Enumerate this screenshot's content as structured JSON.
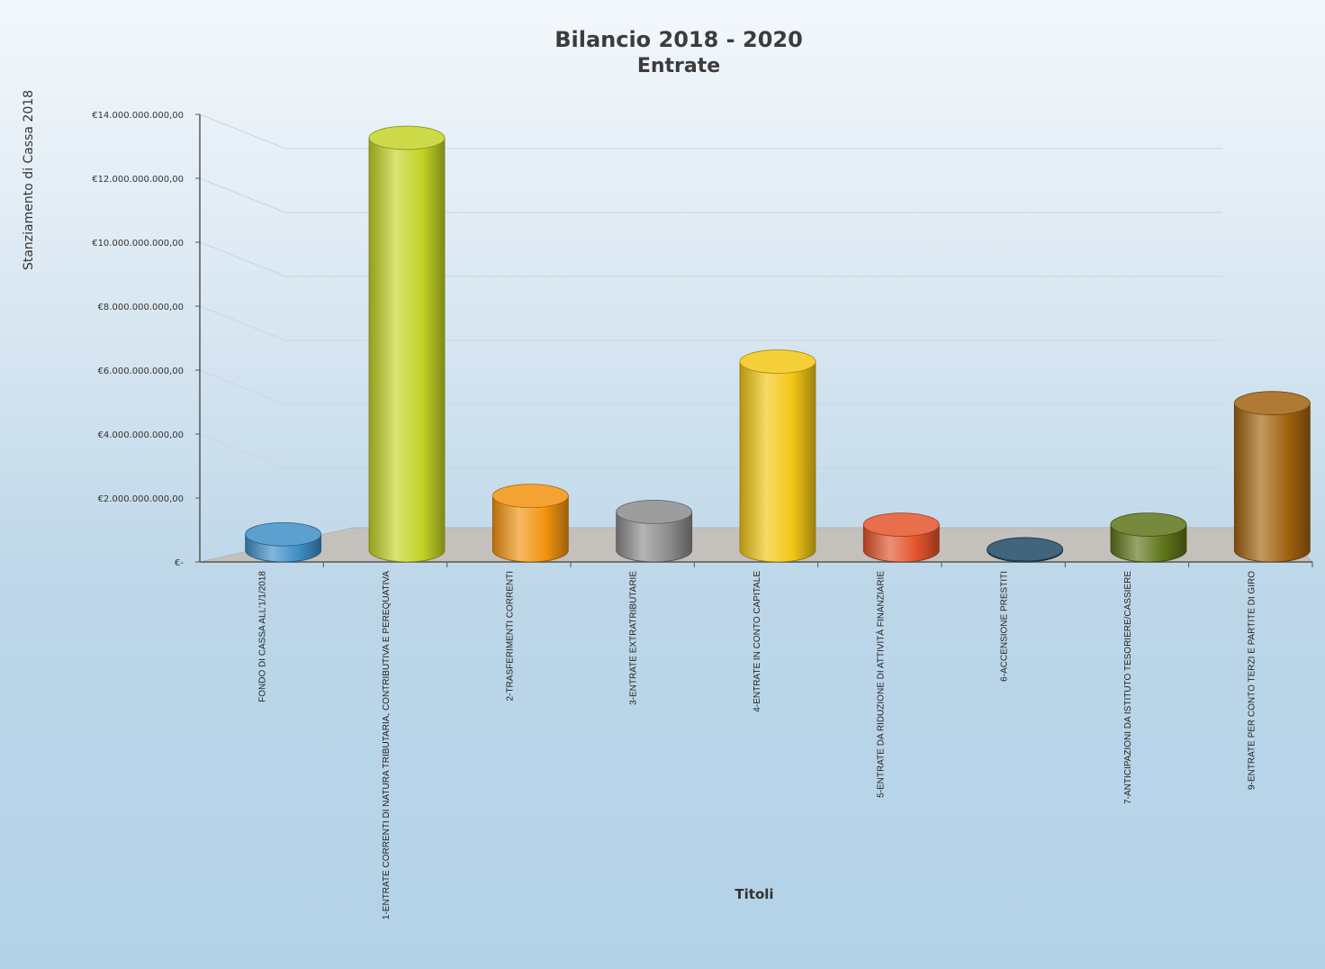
{
  "chart_data": {
    "type": "bar",
    "title": "Bilancio 2018 - 2020",
    "subtitle": "Entrate",
    "xlabel": "Titoli",
    "ylabel": "Stanziamento di Cassa 2018",
    "ylim": [
      0,
      14000000000
    ],
    "yticks": [
      0,
      2000000000,
      4000000000,
      6000000000,
      8000000000,
      10000000000,
      12000000000,
      14000000000
    ],
    "ytick_labels": [
      "€-",
      "€2.000.000.000,00",
      "€4.000.000.000,00",
      "€6.000.000.000,00",
      "€8.000.000.000,00",
      "€10.000.000.000,00",
      "€12.000.000.000,00",
      "€14.000.000.000,00"
    ],
    "grid": true,
    "style": "3d-cylinder",
    "categories": [
      "FONDO DI CASSA ALL'1/1/2018",
      "1-ENTRATE CORRENTI DI NATURA TRIBUTARIA, CONTRIBUTIVA E PEREQUATIVA",
      "2-TRASFERIMENTI CORRENTI",
      "3-ENTRATE EXTRATRIBUTARIE",
      "4-ENTRATE IN CONTO CAPITALE",
      "5-ENTRATE DA RIDUZIONE DI ATTIVITÀ FINANZIARIE",
      "6-ACCENSIONE PRESTITI",
      "7-ANTICIPAZIONI DA ISTITUTO TESORIERE/CASSIERE",
      "9-ENTRATE PER CONTO TERZI E PARTITE DI GIRO"
    ],
    "values": [
      500000000,
      12900000000,
      1700000000,
      1200000000,
      5900000000,
      800000000,
      30000000,
      800000000,
      4600000000
    ],
    "colors": [
      "#3f8fc6",
      "#c3d426",
      "#f2930f",
      "#8c8c8c",
      "#f2c614",
      "#e4542c",
      "#1e4a66",
      "#5f7419",
      "#a1620f"
    ]
  }
}
